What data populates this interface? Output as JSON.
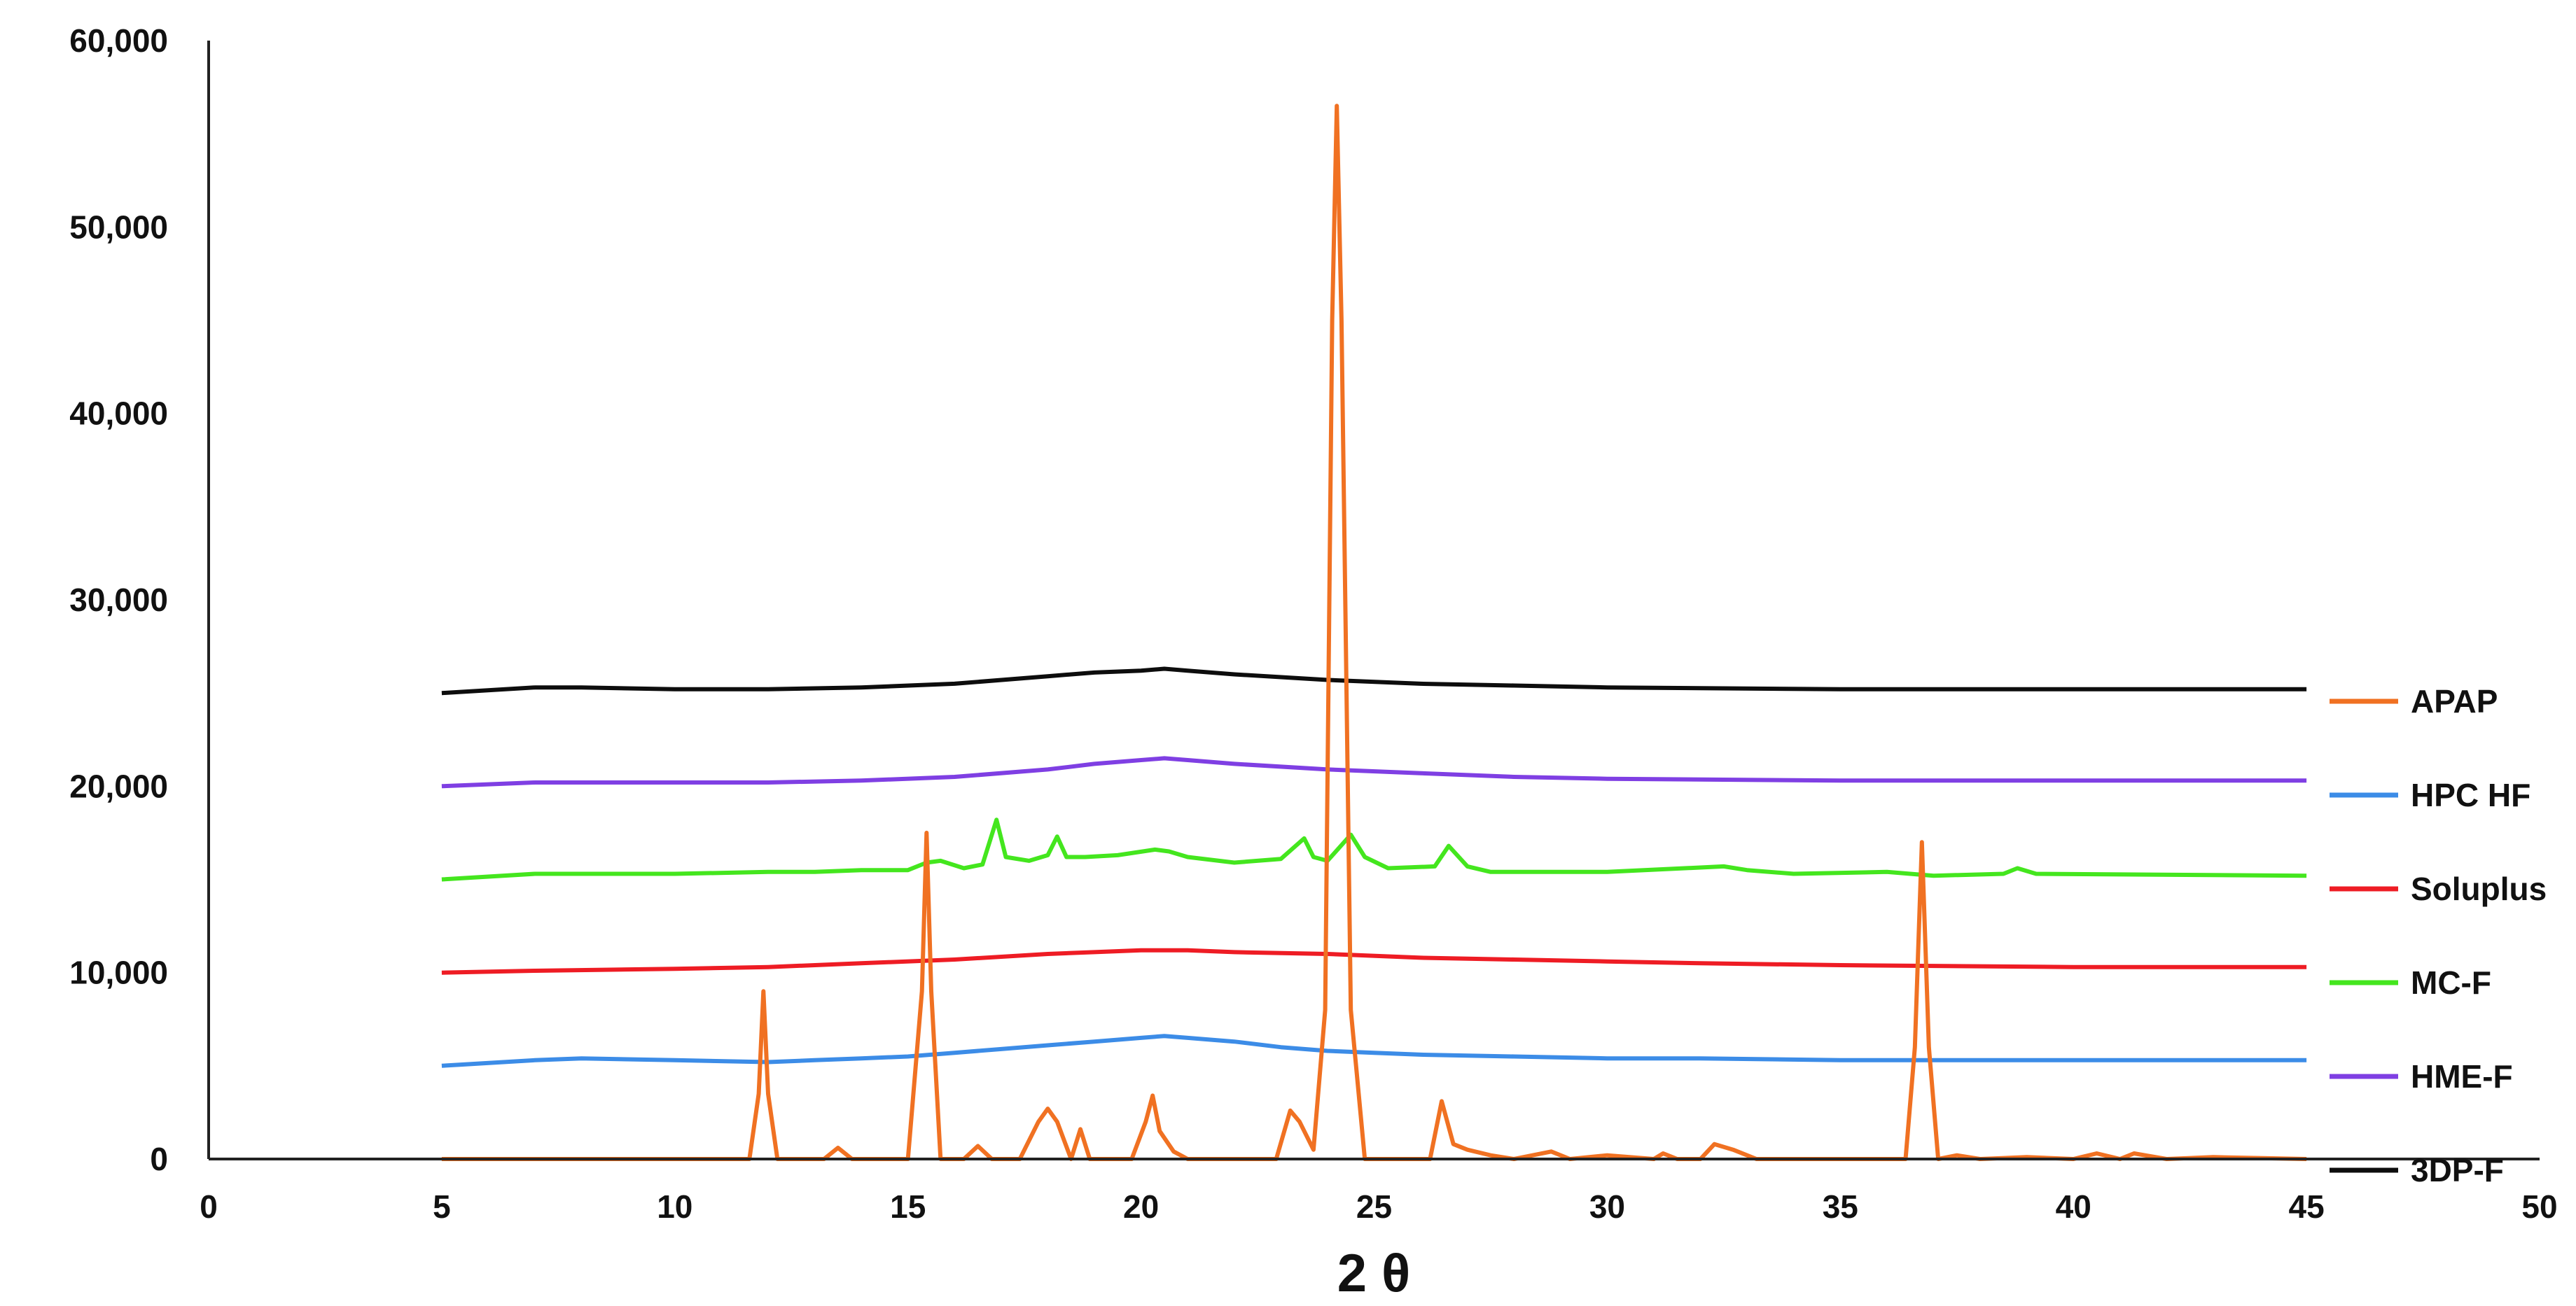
{
  "chart_data": {
    "type": "line",
    "title": "",
    "xlabel": "2 θ",
    "ylabel": "",
    "xlim": [
      0,
      50
    ],
    "ylim": [
      0,
      60000
    ],
    "xticks": [
      0,
      5,
      10,
      15,
      20,
      25,
      30,
      35,
      40,
      45,
      50
    ],
    "yticks": [
      0,
      10000,
      20000,
      30000,
      40000,
      50000,
      60000
    ],
    "ytick_labels": [
      "0",
      "10,000",
      "20,000",
      "30,000",
      "40,000",
      "50,000",
      "60,000"
    ],
    "grid": false,
    "legend_position": "right",
    "series": [
      {
        "name": "APAP",
        "color": "#F07122",
        "x": [
          5,
          11.6,
          11.8,
          11.9,
          12.0,
          12.2,
          12.5,
          13.2,
          13.5,
          13.8,
          15.0,
          15.3,
          15.4,
          15.5,
          15.7,
          16.2,
          16.5,
          16.8,
          17.4,
          17.8,
          18.0,
          18.2,
          18.5,
          18.7,
          18.9,
          19.8,
          20.1,
          20.25,
          20.4,
          20.7,
          21.0,
          22.9,
          23.2,
          23.4,
          23.7,
          23.95,
          24.1,
          24.2,
          24.3,
          24.5,
          24.8,
          25.5,
          26.2,
          26.45,
          26.7,
          27.0,
          27.5,
          28.0,
          28.8,
          29.2,
          30.0,
          31.0,
          31.2,
          31.5,
          32.0,
          32.3,
          32.7,
          33.2,
          36.4,
          36.6,
          36.75,
          36.9,
          37.1,
          37.5,
          38.0,
          39.0,
          40.0,
          40.5,
          41.0,
          41.3,
          42.0,
          43.0,
          45.0
        ],
        "y": [
          0,
          0,
          3500,
          9000,
          3500,
          0,
          0,
          0,
          600,
          0,
          0,
          9000,
          17500,
          9000,
          0,
          0,
          700,
          0,
          0,
          2000,
          2700,
          2000,
          0,
          1600,
          0,
          0,
          2000,
          3400,
          1500,
          400,
          0,
          0,
          2600,
          2000,
          500,
          8000,
          45000,
          56500,
          45000,
          8000,
          0,
          0,
          0,
          3100,
          800,
          500,
          200,
          0,
          400,
          0,
          200,
          0,
          300,
          0,
          0,
          800,
          500,
          0,
          0,
          6000,
          17000,
          6000,
          0,
          200,
          0,
          100,
          0,
          300,
          0,
          300,
          0,
          100,
          0
        ]
      },
      {
        "name": "HPC HF",
        "color": "#3C8CE7",
        "x": [
          5,
          7,
          8,
          10,
          12,
          13,
          14,
          15,
          16,
          17,
          18,
          19,
          20,
          20.5,
          21,
          22,
          23,
          24,
          25,
          26,
          28,
          30,
          32,
          35,
          40,
          45
        ],
        "y": [
          5000,
          5300,
          5400,
          5300,
          5200,
          5300,
          5400,
          5500,
          5700,
          5900,
          6100,
          6300,
          6500,
          6600,
          6500,
          6300,
          6000,
          5800,
          5700,
          5600,
          5500,
          5400,
          5400,
          5300,
          5300,
          5300
        ]
      },
      {
        "name": "Soluplus",
        "color": "#EE1C24",
        "x": [
          5,
          7,
          10,
          12,
          14,
          16,
          18,
          19,
          20,
          21,
          22,
          24,
          26,
          28,
          30,
          32,
          35,
          40,
          45
        ],
        "y": [
          10000,
          10100,
          10200,
          10300,
          10500,
          10700,
          11000,
          11100,
          11200,
          11200,
          11100,
          11000,
          10800,
          10700,
          10600,
          10500,
          10400,
          10300,
          10300
        ]
      },
      {
        "name": "MC-F",
        "color": "#44E61E",
        "x": [
          5,
          7,
          10,
          12,
          13,
          14,
          15,
          15.4,
          15.7,
          16.2,
          16.6,
          16.9,
          17.1,
          17.6,
          18.0,
          18.2,
          18.4,
          18.8,
          19.5,
          20.3,
          20.6,
          21.0,
          22.0,
          23.0,
          23.5,
          23.7,
          24.0,
          24.5,
          24.8,
          25.3,
          26.3,
          26.6,
          27.0,
          27.5,
          30.0,
          32.5,
          33.0,
          34.0,
          36.0,
          37.0,
          38.5,
          38.8,
          39.2,
          45.0
        ],
        "y": [
          15000,
          15300,
          15300,
          15400,
          15400,
          15500,
          15500,
          15900,
          16000,
          15600,
          15800,
          18200,
          16200,
          16000,
          16300,
          17300,
          16200,
          16200,
          16300,
          16600,
          16500,
          16200,
          15900,
          16100,
          17200,
          16200,
          16000,
          17400,
          16200,
          15600,
          15700,
          16800,
          15700,
          15400,
          15400,
          15700,
          15500,
          15300,
          15400,
          15200,
          15300,
          15600,
          15300,
          15200
        ]
      },
      {
        "name": "HME-F",
        "color": "#7F3FE3",
        "x": [
          5,
          7,
          10,
          12,
          14,
          16,
          18,
          19,
          20,
          20.5,
          21,
          22,
          24,
          26,
          28,
          30,
          35,
          40,
          45
        ],
        "y": [
          20000,
          20200,
          20200,
          20200,
          20300,
          20500,
          20900,
          21200,
          21400,
          21500,
          21400,
          21200,
          20900,
          20700,
          20500,
          20400,
          20300,
          20300,
          20300
        ]
      },
      {
        "name": "3DP-F",
        "color": "#0D0D0D",
        "x": [
          5,
          7,
          8,
          10,
          12,
          14,
          16,
          18,
          19,
          20,
          20.5,
          21,
          22,
          24,
          26,
          28,
          30,
          35,
          40,
          45
        ],
        "y": [
          25000,
          25300,
          25300,
          25200,
          25200,
          25300,
          25500,
          25900,
          26100,
          26200,
          26300,
          26200,
          26000,
          25700,
          25500,
          25400,
          25300,
          25200,
          25200,
          25200
        ]
      }
    ]
  }
}
